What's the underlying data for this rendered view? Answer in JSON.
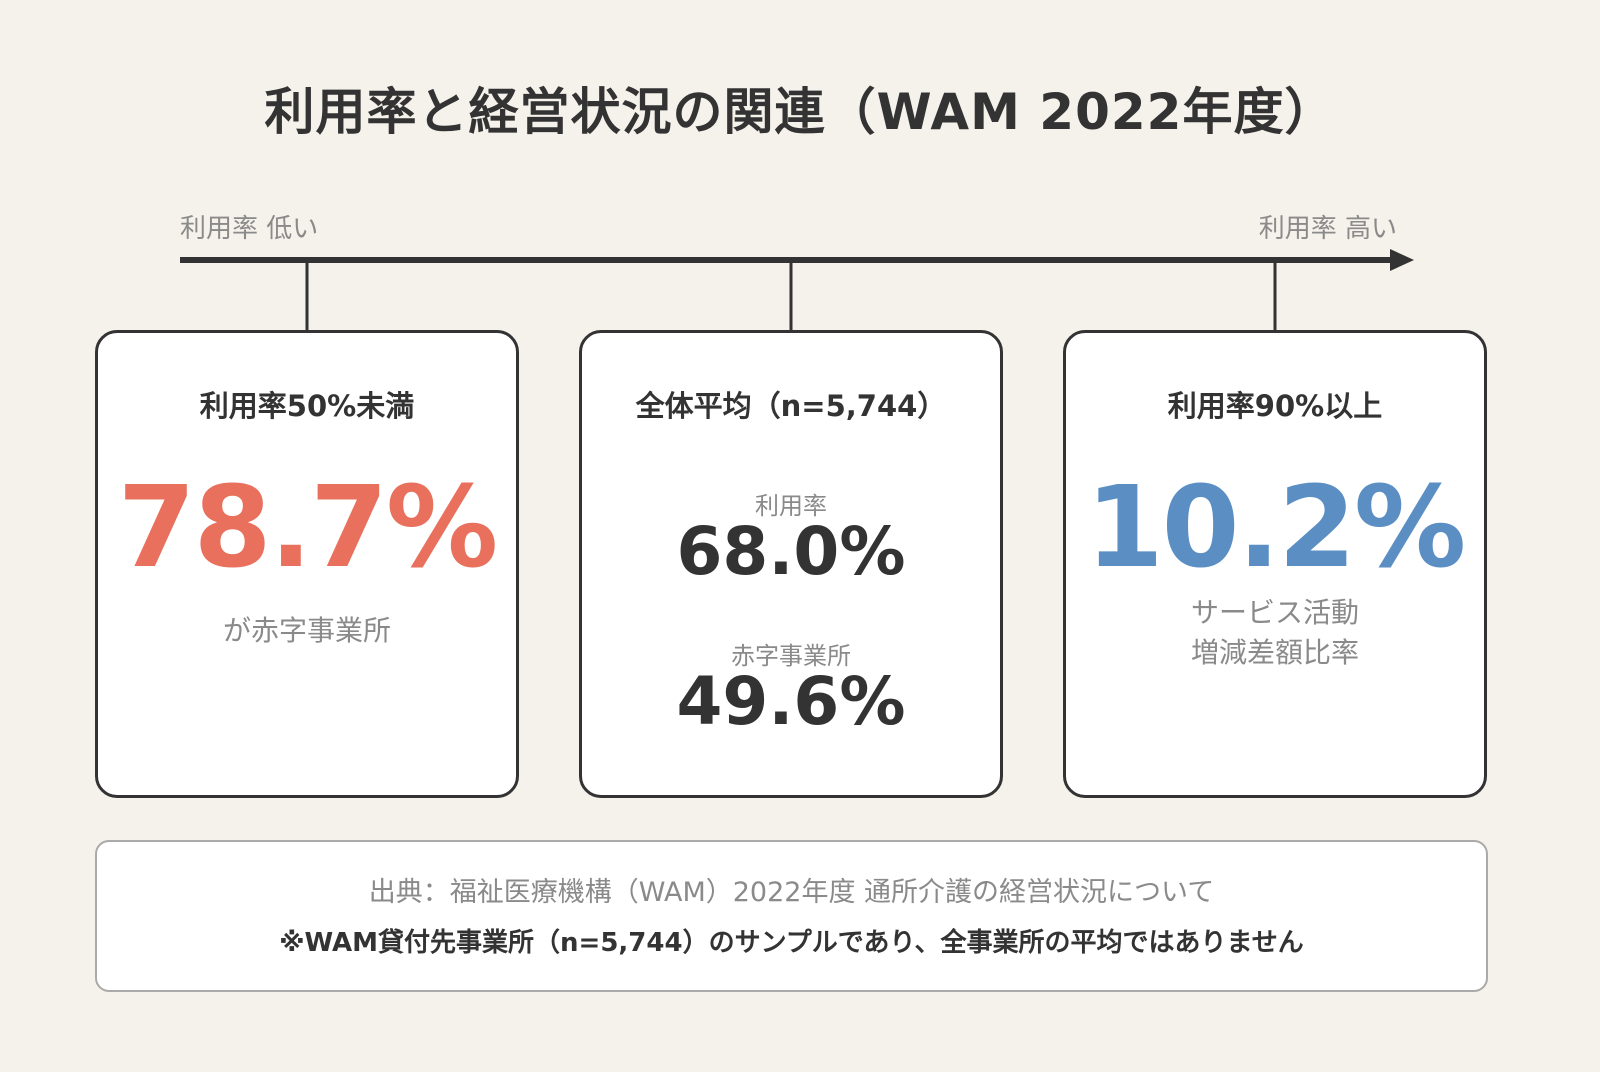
{
  "title": "利用率と経営状況の関連（WAM 2022年度）",
  "axis": {
    "low_label": "利用率 低い",
    "high_label": "利用率 高い"
  },
  "cards": {
    "low": {
      "title": "利用率50%未満",
      "value": "78.7%",
      "note": "が赤字事業所"
    },
    "average": {
      "title": "全体平均（n=5,744）",
      "utilization_label": "利用率",
      "utilization_value": "68.0%",
      "deficit_label": "赤字事業所",
      "deficit_value": "49.6%"
    },
    "high": {
      "title": "利用率90%以上",
      "value": "10.2%",
      "note_line1": "サービス活動",
      "note_line2": "増減差額比率"
    }
  },
  "source": {
    "line1": "出典：福祉医療機構（WAM）2022年度 通所介護の経営状況について",
    "line2": "※WAM貸付先事業所（n=5,744）のサンプルであり、全事業所の平均ではありません"
  },
  "colors": {
    "background": "#f5f1eb",
    "accent_red": "#e8705c",
    "accent_blue": "#5b8fc4",
    "text_dark": "#333333",
    "text_muted": "#8a8a8a"
  }
}
